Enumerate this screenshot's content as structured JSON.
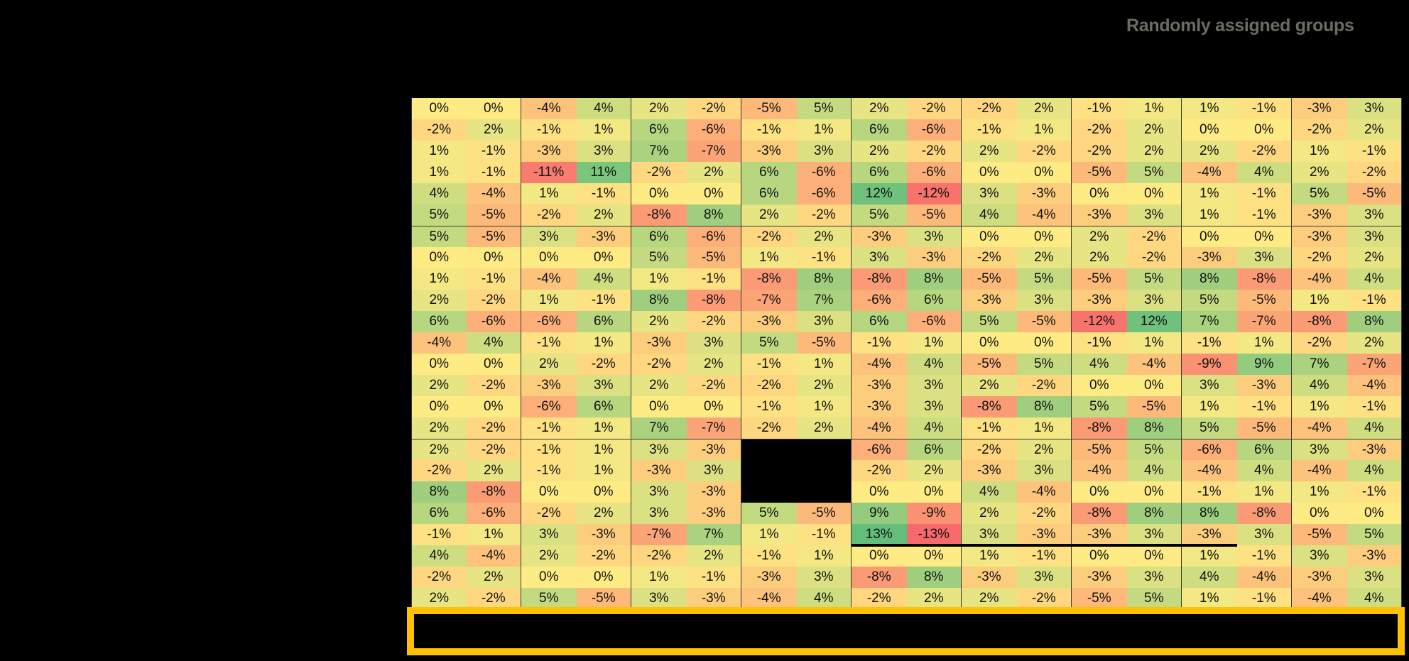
{
  "title": "Randomly assigned groups",
  "color_scale": {
    "min_color": "#F8696B",
    "mid_color": "#FFEB84",
    "max_color": "#63BE7B",
    "min": -13,
    "mid": 0,
    "max": 13
  },
  "chart_data": {
    "type": "heatmap",
    "title": "Randomly assigned groups",
    "value_format": "percent",
    "n_rows": 24,
    "n_cols": 18,
    "column_pairs": 9,
    "row_groups": [
      [
        1,
        6
      ],
      [
        7,
        16
      ],
      [
        17,
        24
      ]
    ],
    "masked_cells": {
      "rows": [
        17,
        18,
        19
      ],
      "cols": [
        7,
        8
      ]
    },
    "values": [
      [
        0,
        0,
        -4,
        4,
        2,
        -2,
        -5,
        5,
        2,
        -2,
        -2,
        2,
        -1,
        1,
        1,
        -1,
        -3,
        3
      ],
      [
        -2,
        2,
        -1,
        1,
        6,
        -6,
        -1,
        1,
        6,
        -6,
        -1,
        1,
        -2,
        2,
        0,
        0,
        -2,
        2
      ],
      [
        1,
        -1,
        -3,
        3,
        7,
        -7,
        -3,
        3,
        2,
        -2,
        2,
        -2,
        -2,
        2,
        2,
        -2,
        1,
        -1
      ],
      [
        1,
        -1,
        -11,
        11,
        -2,
        2,
        6,
        -6,
        6,
        -6,
        0,
        0,
        -5,
        5,
        -4,
        4,
        2,
        -2
      ],
      [
        4,
        -4,
        1,
        -1,
        0,
        0,
        6,
        -6,
        12,
        -12,
        3,
        -3,
        0,
        0,
        1,
        -1,
        5,
        -5
      ],
      [
        5,
        -5,
        -2,
        2,
        -8,
        8,
        2,
        -2,
        5,
        -5,
        4,
        -4,
        -3,
        3,
        1,
        -1,
        -3,
        3
      ],
      [
        5,
        -5,
        3,
        -3,
        6,
        -6,
        -2,
        2,
        -3,
        3,
        0,
        0,
        2,
        -2,
        0,
        0,
        -3,
        3
      ],
      [
        0,
        0,
        0,
        0,
        5,
        -5,
        1,
        -1,
        3,
        -3,
        -2,
        2,
        2,
        -2,
        -3,
        3,
        -2,
        2
      ],
      [
        1,
        -1,
        -4,
        4,
        1,
        -1,
        -8,
        8,
        -8,
        8,
        -5,
        5,
        -5,
        5,
        8,
        -8,
        -4,
        4
      ],
      [
        2,
        -2,
        1,
        -1,
        8,
        -8,
        -7,
        7,
        -6,
        6,
        -3,
        3,
        -3,
        3,
        5,
        -5,
        1,
        -1
      ],
      [
        6,
        -6,
        -6,
        6,
        2,
        -2,
        -3,
        3,
        6,
        -6,
        5,
        -5,
        -12,
        12,
        7,
        -7,
        -8,
        8
      ],
      [
        -4,
        4,
        -1,
        1,
        -3,
        3,
        5,
        -5,
        -1,
        1,
        0,
        0,
        -1,
        1,
        -1,
        1,
        -2,
        2
      ],
      [
        0,
        0,
        2,
        -2,
        -2,
        2,
        -1,
        1,
        -4,
        4,
        -5,
        5,
        4,
        -4,
        -9,
        9,
        7,
        -7
      ],
      [
        2,
        -2,
        -3,
        3,
        2,
        -2,
        -2,
        2,
        -3,
        3,
        2,
        -2,
        0,
        0,
        3,
        -3,
        4,
        -4
      ],
      [
        0,
        0,
        -6,
        6,
        0,
        0,
        -1,
        1,
        -3,
        3,
        -8,
        8,
        5,
        -5,
        1,
        -1,
        1,
        -1
      ],
      [
        2,
        -2,
        -1,
        1,
        7,
        -7,
        -2,
        2,
        -4,
        4,
        -1,
        1,
        -8,
        8,
        5,
        -5,
        -4,
        4
      ],
      [
        2,
        -2,
        -1,
        1,
        3,
        -3,
        null,
        null,
        -6,
        6,
        -2,
        2,
        -5,
        5,
        -6,
        6,
        3,
        -3
      ],
      [
        -2,
        2,
        -1,
        1,
        -3,
        3,
        null,
        null,
        -2,
        2,
        -3,
        3,
        -4,
        4,
        -4,
        4,
        -4,
        4
      ],
      [
        8,
        -8,
        0,
        0,
        3,
        -3,
        null,
        null,
        0,
        0,
        4,
        -4,
        0,
        0,
        -1,
        1,
        1,
        -1
      ],
      [
        6,
        -6,
        -2,
        2,
        3,
        -3,
        5,
        -5,
        9,
        -9,
        2,
        -2,
        -8,
        8,
        8,
        -8,
        0,
        0
      ],
      [
        -1,
        1,
        3,
        -3,
        -7,
        7,
        1,
        -1,
        13,
        -13,
        3,
        -3,
        -3,
        3,
        -3,
        3,
        -5,
        5
      ],
      [
        4,
        -4,
        2,
        -2,
        -2,
        2,
        -1,
        1,
        0,
        0,
        1,
        -1,
        0,
        0,
        1,
        -1,
        3,
        -3
      ],
      [
        -2,
        2,
        0,
        0,
        1,
        -1,
        -3,
        3,
        -8,
        8,
        -3,
        3,
        -3,
        3,
        4,
        -4,
        -3,
        3
      ],
      [
        2,
        -2,
        5,
        -5,
        3,
        -3,
        -4,
        4,
        -2,
        2,
        2,
        -2,
        -5,
        5,
        1,
        -1,
        -4,
        4
      ]
    ],
    "annotations": [
      {
        "type": "thick-underline",
        "after_row": 21,
        "from_col": 9,
        "to_col": 15
      },
      {
        "type": "highlight-box",
        "color": "#FFC000",
        "position": "below-grid"
      }
    ],
    "legend": null,
    "grid": true
  }
}
